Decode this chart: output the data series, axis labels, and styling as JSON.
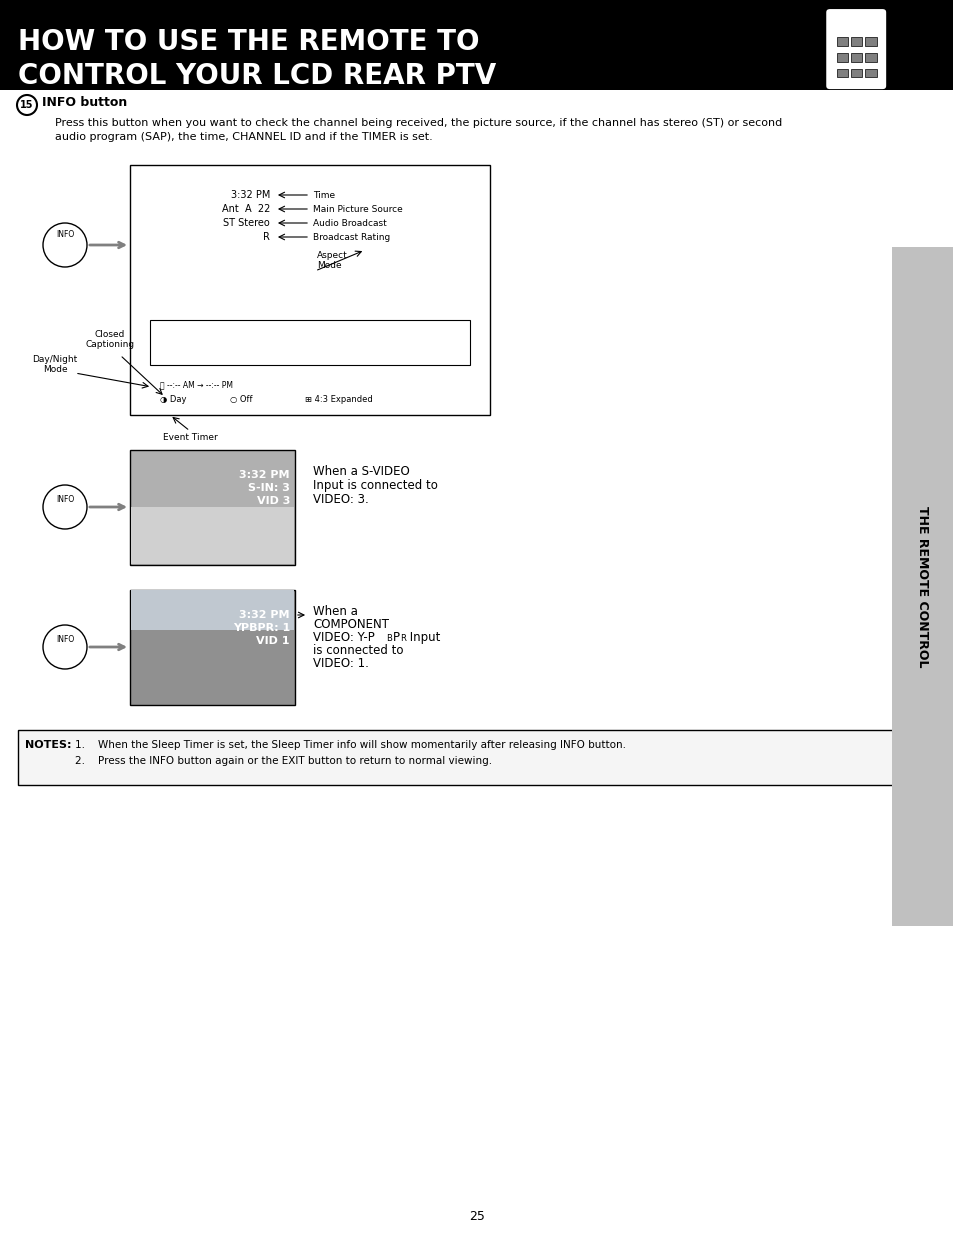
{
  "title_line1": "HOW TO USE THE REMOTE TO",
  "title_line2": "CONTROL YOUR LCD REAR PTV",
  "section_num": "15",
  "section_title": "INFO button",
  "section_body_line1": "Press this button when you want to check the channel being received, the picture source, if the channel has stereo (ST) or second",
  "section_body_line2": "audio program (SAP), the time, CHANNEL ID and if the TIMER is set.",
  "diagram_labels_right": [
    "Time",
    "Main Picture Source",
    "Audio Broadcast",
    "Broadcast Rating"
  ],
  "diagram_labels_left_top": [
    "3:32 PM",
    "Ant  A  22",
    "ST Stereo",
    "R"
  ],
  "aspect_mode_label": "Aspect\nMode",
  "closed_captioning_label": "Closed\nCaptioning",
  "day_night_mode_label": "Day/Night\nMode",
  "event_timer_label": "Event Timer",
  "info_label": "INFO",
  "svideo_title_line1": "3:32 PM",
  "svideo_title_line2": "S-IN: 3",
  "svideo_title_line3": "VID 3",
  "svideo_text_line1": "When a S-VIDEO",
  "svideo_text_line2": "Input is connected to",
  "svideo_text_line3": "VIDEO: 3.",
  "component_title_line1": "3:32 PM",
  "component_title_line2": "YPBPR: 1",
  "component_title_line3": "VID 1",
  "component_text_line1": "When a",
  "component_text_line2": "COMPONENT",
  "component_text_line3": "VIDEO: Y-PBPR Input",
  "component_text_line4": "is connected to",
  "component_text_line5": "VIDEO: 1.",
  "sidebar_text": "THE REMOTE CONTROL",
  "notes_label": "NOTES:",
  "note1": "1.\tWhen the Sleep Timer is set, the Sleep Timer info will show momentarily after releasing INFO button.",
  "note2": "2.\tPress the INFO button again or the EXIT button to return to normal viewing.",
  "page_number": "25",
  "bg_color": "#ffffff",
  "title_bg": "#000000",
  "title_text_color": "#ffffff",
  "sidebar_bg": "#aaaaaa",
  "notes_bg": "#f0f0f0",
  "border_color": "#000000"
}
